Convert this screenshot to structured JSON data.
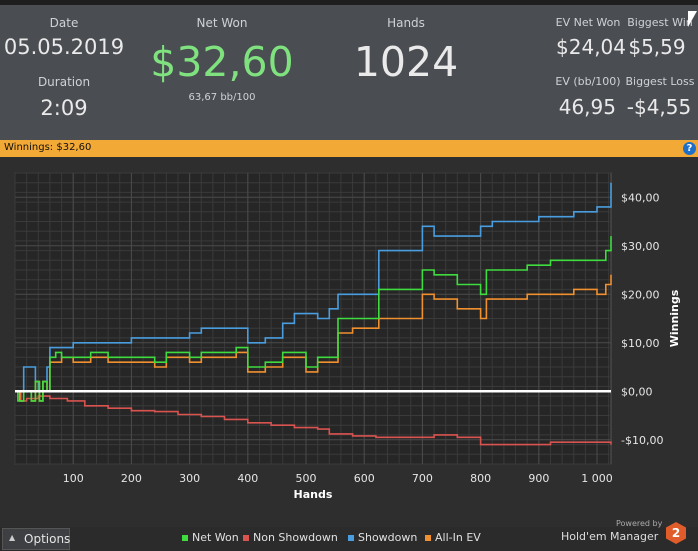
{
  "stats": {
    "date_label": "Date",
    "date_value": "05.05.2019",
    "duration_label": "Duration",
    "duration_value": "2:09",
    "net_won_label": "Net Won",
    "net_won_value": "$32,60",
    "bb_per_100": "63,67 bb/100",
    "hands_label": "Hands",
    "hands_value": "1024",
    "ev_net_won_label": "EV Net Won",
    "ev_net_won_value": "$24,04",
    "biggest_win_label": "Biggest Win",
    "biggest_win_value": "$5,59",
    "ev_bb_label": "EV (bb/100)",
    "ev_bb_value": "46,95",
    "biggest_loss_label": "Biggest Loss",
    "biggest_loss_value": "-$4,55"
  },
  "banner": {
    "text": "Winnings: $32,60",
    "help_label": "?"
  },
  "footer": {
    "options_label": "Options",
    "powered_by": "Powered by",
    "brand": "Hold'em Manager",
    "logo_text": "2"
  },
  "colors": {
    "net_won": "#3fdc3f",
    "non_showdown": "#d9534f",
    "showdown": "#4a9ee0",
    "all_in_ev": "#f0902f",
    "net_won_text": "#7fe27f",
    "banner": "#f3a936"
  },
  "chart_data": {
    "type": "line",
    "xlabel": "Hands",
    "ylabel": "Winnings",
    "xlim": [
      0,
      1024
    ],
    "ylim": [
      -15,
      45
    ],
    "x_ticks": [
      100,
      200,
      300,
      400,
      500,
      600,
      700,
      800,
      900,
      1000
    ],
    "x_tick_labels": [
      "100",
      "200",
      "300",
      "400",
      "500",
      "600",
      "700",
      "800",
      "900",
      "1 000"
    ],
    "y_ticks": [
      -10,
      0,
      10,
      20,
      30,
      40
    ],
    "y_tick_labels": [
      "-$10,00",
      "$0,00",
      "$10,00",
      "$20,00",
      "$30,00",
      "$40,00"
    ],
    "grid": true,
    "legend_position": "bottom",
    "series": [
      {
        "name": "Net Won",
        "color": "#3fdc3f",
        "x": [
          0,
          5,
          8,
          15,
          20,
          28,
          35,
          42,
          48,
          55,
          60,
          70,
          80,
          100,
          130,
          160,
          200,
          240,
          260,
          300,
          320,
          340,
          360,
          380,
          400,
          430,
          460,
          480,
          500,
          520,
          540,
          555,
          580,
          600,
          620,
          625,
          650,
          680,
          700,
          720,
          760,
          800,
          810,
          850,
          880,
          920,
          960,
          1000,
          1015,
          1024
        ],
        "y": [
          0,
          -2,
          -2,
          0,
          0,
          -2,
          2,
          -2,
          2,
          0,
          7,
          8,
          7,
          7,
          8,
          7,
          7,
          6,
          8,
          7,
          8,
          8,
          8,
          9,
          5,
          6,
          8,
          8,
          5,
          7,
          7,
          15,
          15,
          15,
          15,
          21,
          21,
          21,
          25,
          24,
          22,
          20,
          25,
          25,
          26,
          27,
          27,
          27,
          29,
          32
        ]
      },
      {
        "name": "Non Showdown",
        "color": "#d9534f",
        "x": [
          0,
          10,
          20,
          40,
          60,
          90,
          120,
          160,
          200,
          240,
          280,
          320,
          360,
          400,
          440,
          480,
          520,
          540,
          580,
          620,
          680,
          720,
          760,
          800,
          840,
          880,
          920,
          960,
          1000,
          1024
        ],
        "y": [
          0,
          -2,
          -1.5,
          -1,
          -1.5,
          -2,
          -3,
          -3.5,
          -4,
          -4.2,
          -4.8,
          -5.2,
          -5.8,
          -6.5,
          -7,
          -7.5,
          -7.8,
          -8.8,
          -9.2,
          -9.5,
          -9.5,
          -9,
          -9.5,
          -11,
          -11,
          -11,
          -10.5,
          -10.5,
          -10.5,
          -11
        ]
      },
      {
        "name": "Showdown",
        "color": "#4a9ee0",
        "x": [
          0,
          10,
          15,
          25,
          35,
          40,
          48,
          55,
          60,
          80,
          100,
          130,
          160,
          200,
          240,
          280,
          300,
          320,
          340,
          360,
          380,
          400,
          430,
          460,
          480,
          500,
          520,
          540,
          555,
          580,
          600,
          620,
          625,
          660,
          680,
          690,
          700,
          720,
          760,
          800,
          820,
          860,
          900,
          940,
          960,
          1000,
          1015,
          1024
        ],
        "y": [
          0,
          0,
          5,
          5,
          2,
          0,
          2,
          5,
          9,
          9,
          10,
          10,
          10,
          11,
          11,
          11,
          12,
          13,
          13,
          13,
          13,
          10,
          11,
          14,
          16,
          16,
          15,
          17,
          20,
          20,
          20,
          20,
          29,
          29,
          29,
          29,
          34,
          32,
          32,
          34,
          35,
          35,
          36,
          36,
          37,
          38,
          38,
          43
        ]
      },
      {
        "name": "All-In EV",
        "color": "#f0902f",
        "x": [
          0,
          8,
          15,
          28,
          35,
          42,
          48,
          55,
          60,
          80,
          100,
          130,
          160,
          200,
          240,
          260,
          300,
          320,
          340,
          360,
          380,
          400,
          430,
          460,
          480,
          500,
          520,
          540,
          555,
          580,
          600,
          620,
          625,
          650,
          680,
          700,
          720,
          760,
          800,
          810,
          850,
          880,
          920,
          960,
          1000,
          1015,
          1024
        ],
        "y": [
          0,
          -2,
          0,
          -2,
          2,
          -2,
          2,
          0,
          6,
          7,
          6,
          7,
          6,
          6,
          5,
          7,
          6,
          7,
          7,
          7,
          8,
          4,
          5,
          7,
          7,
          4,
          6,
          6,
          12,
          13,
          13,
          13,
          15,
          15,
          15,
          20,
          19,
          17,
          15,
          19,
          19,
          20,
          20,
          21,
          20,
          22,
          24
        ]
      }
    ]
  }
}
